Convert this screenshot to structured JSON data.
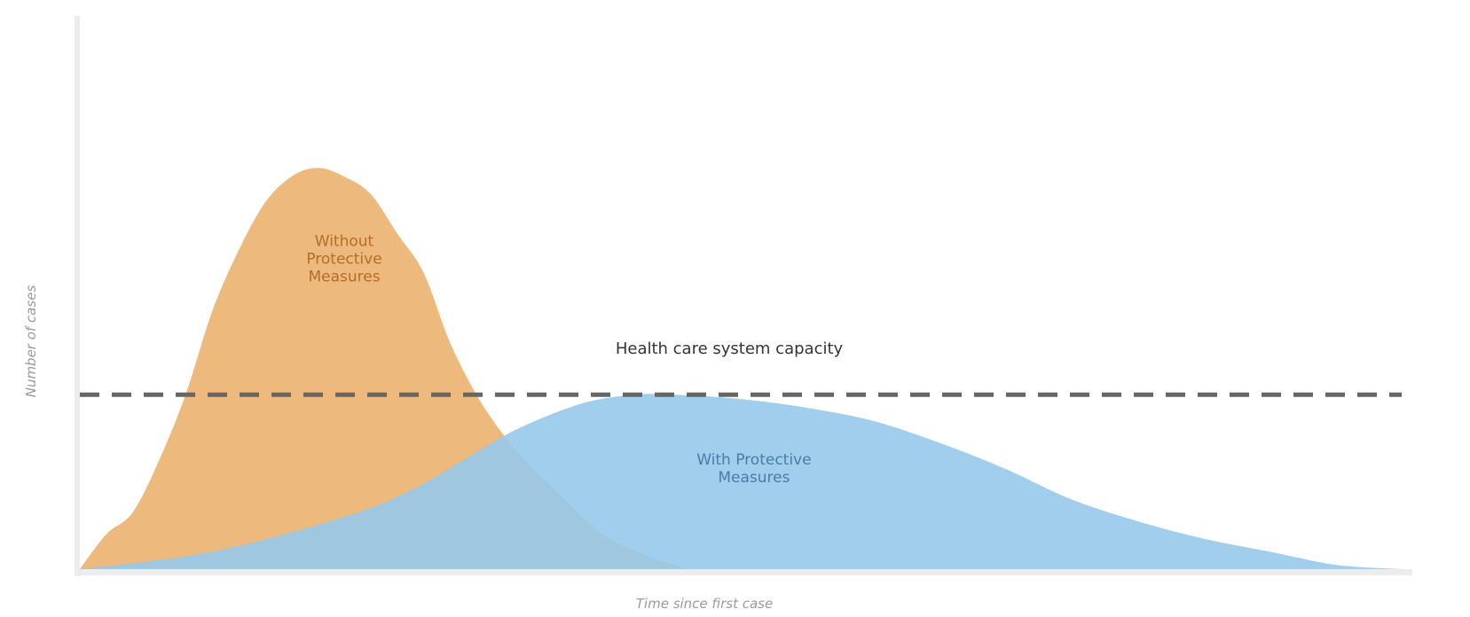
{
  "chart_data": {
    "type": "area",
    "xlabel": "Time since first case",
    "ylabel": "Number of cases",
    "xlim": [
      0,
      100
    ],
    "ylim": [
      0,
      100
    ],
    "grid": false,
    "legend": "none",
    "capacity": {
      "label": "Health care system capacity",
      "value": 40,
      "color": "#666666"
    },
    "series": [
      {
        "name_lines": [
          "Without",
          "Protective",
          "Measures"
        ],
        "color": "#eeb97d",
        "label_color": "#b06f2a",
        "x": [
          0,
          2,
          4,
          6,
          8,
          10,
          12,
          14,
          16,
          18,
          20,
          22,
          24,
          26,
          28,
          30,
          32,
          34,
          36,
          38,
          40,
          43,
          46
        ],
        "y": [
          0,
          8,
          13,
          25,
          40,
          59,
          73,
          84,
          90,
          92,
          90,
          86,
          77,
          68,
          52,
          40,
          31,
          24,
          18,
          12,
          7,
          3,
          0
        ]
      },
      {
        "name_lines": [
          "With Protective",
          "Measures"
        ],
        "color": "#96c9ea",
        "label_color": "#4a7ca8",
        "x": [
          0,
          10,
          20,
          25,
          29,
          33,
          38,
          42,
          45,
          50,
          55,
          60,
          65,
          70,
          75,
          80,
          85,
          90,
          95,
          100
        ],
        "y": [
          0,
          4,
          12,
          18,
          25,
          32,
          38,
          40,
          40,
          39,
          37,
          34,
          29,
          23,
          16,
          11,
          7,
          4,
          1,
          0
        ]
      }
    ]
  }
}
